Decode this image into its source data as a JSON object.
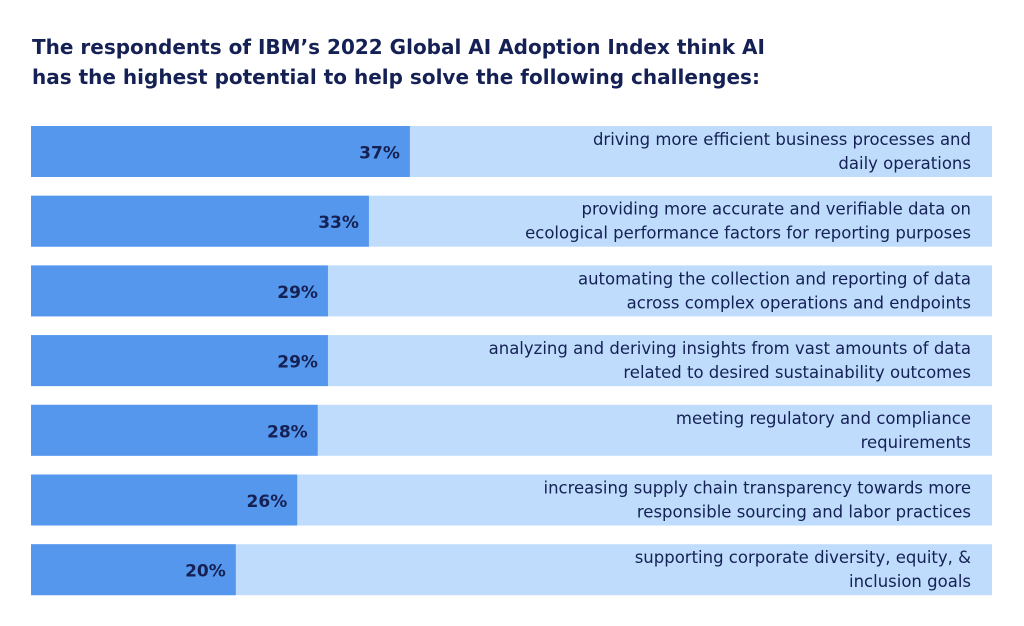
{
  "title_lines": [
    "The respondents of IBM’s 2022 Global AI Adoption Index think AI",
    "has the highest potential to help solve the following challenges:"
  ],
  "colors": {
    "bar_fill": "#5597EC",
    "track_fill": "#BFDCFD",
    "text": "#152154"
  },
  "chart_data": {
    "type": "bar",
    "orientation": "horizontal",
    "title": "The respondents of IBM’s 2022 Global AI Adoption Index think AI has the highest potential to help solve the following challenges:",
    "xlim": [
      0,
      100
    ],
    "grid": false,
    "value_suffix": "%",
    "categories": [
      [
        "driving more efficient business processes and",
        "daily operations"
      ],
      [
        "providing more accurate and verifiable data on",
        "ecological performance factors for reporting purposes"
      ],
      [
        "automating the collection and reporting of data",
        "across complex operations and endpoints"
      ],
      [
        "analyzing and deriving insights from vast amounts of data",
        "related to desired sustainability outcomes"
      ],
      [
        "meeting regulatory and compliance",
        "requirements"
      ],
      [
        "increasing supply chain transparency towards more",
        "responsible sourcing and labor practices"
      ],
      [
        "supporting corporate diversity, equity, &",
        "inclusion goals"
      ]
    ],
    "values": [
      37,
      33,
      29,
      29,
      28,
      26,
      20
    ],
    "data_labels": [
      "37%",
      "33%",
      "29%",
      "29%",
      "28%",
      "26%",
      "20%"
    ]
  }
}
